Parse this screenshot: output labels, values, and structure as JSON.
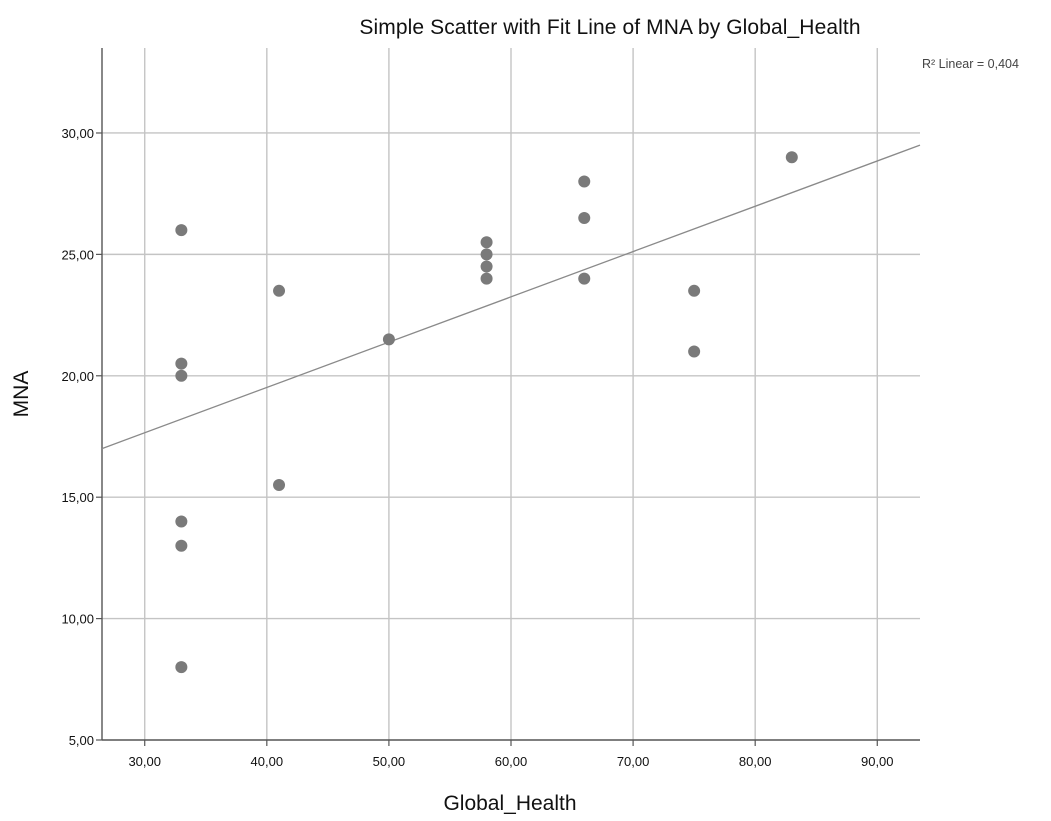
{
  "chart_data": {
    "type": "scatter",
    "title": "Simple Scatter with Fit Line of MNA by Global_Health",
    "xlabel": "Global_Health",
    "ylabel": "MNA",
    "xlim": [
      26.5,
      93.5
    ],
    "ylim": [
      5,
      33.5
    ],
    "x_ticks": [
      30,
      40,
      50,
      60,
      70,
      80,
      90
    ],
    "x_tick_labels": [
      "30,00",
      "40,00",
      "50,00",
      "60,00",
      "70,00",
      "80,00",
      "90,00"
    ],
    "y_ticks": [
      5,
      10,
      15,
      20,
      25,
      30
    ],
    "y_tick_labels": [
      "5,00",
      "10,00",
      "15,00",
      "20,00",
      "25,00",
      "30,00"
    ],
    "grid": true,
    "annotation": "R² Linear = 0,404",
    "fit_line": {
      "x": [
        26.5,
        93.5
      ],
      "y": [
        17.0,
        29.5
      ]
    },
    "points": [
      {
        "x": 33,
        "y": 26.0
      },
      {
        "x": 33,
        "y": 20.5
      },
      {
        "x": 33,
        "y": 20.0
      },
      {
        "x": 33,
        "y": 14.0
      },
      {
        "x": 33,
        "y": 13.0
      },
      {
        "x": 33,
        "y": 8.0
      },
      {
        "x": 41,
        "y": 23.5
      },
      {
        "x": 41,
        "y": 15.5
      },
      {
        "x": 50,
        "y": 21.5
      },
      {
        "x": 58,
        "y": 25.5
      },
      {
        "x": 58,
        "y": 25.0
      },
      {
        "x": 58,
        "y": 24.5
      },
      {
        "x": 58,
        "y": 24.0
      },
      {
        "x": 66,
        "y": 28.0
      },
      {
        "x": 66,
        "y": 26.5
      },
      {
        "x": 66,
        "y": 24.0
      },
      {
        "x": 75,
        "y": 23.5
      },
      {
        "x": 75,
        "y": 21.0
      },
      {
        "x": 83,
        "y": 29.0
      }
    ],
    "colors": {
      "point": "#7a7a7a",
      "grid": "#c4c4c4",
      "fit_line": "#8a8a8a",
      "axis": "#555555"
    }
  }
}
